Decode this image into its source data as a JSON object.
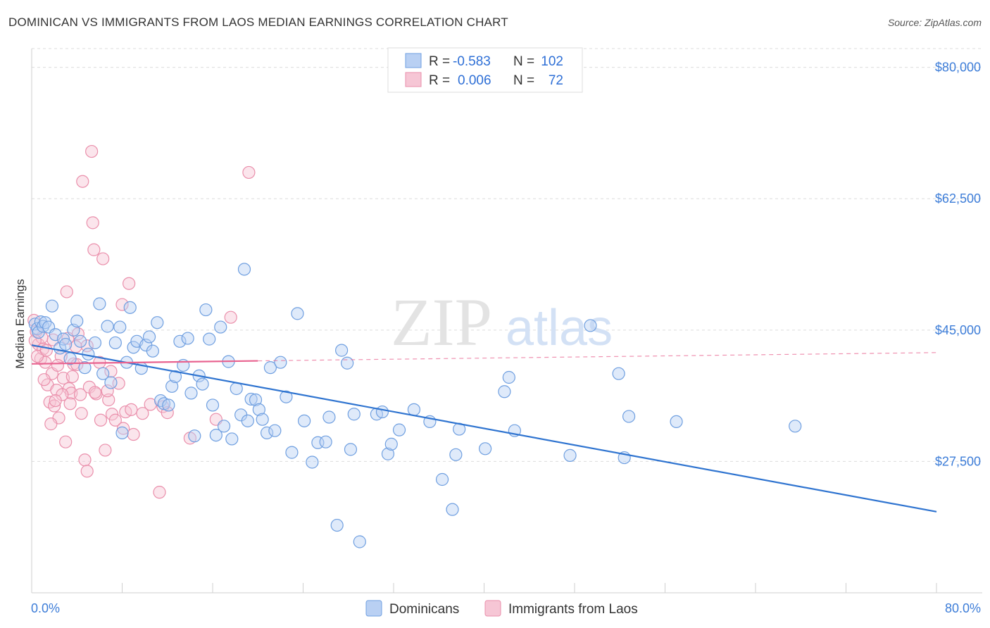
{
  "title": "DOMINICAN VS IMMIGRANTS FROM LAOS MEDIAN EARNINGS CORRELATION CHART",
  "source": "Source: ZipAtlas.com",
  "watermark": {
    "zip": "ZIP",
    "atlas": "atlas"
  },
  "colors": {
    "blue": "#6f9fe0",
    "blue_fill": "#b9d0f3",
    "blue_line": "#2f74d0",
    "pink": "#ea8fab",
    "pink_fill": "#f6c6d5",
    "pink_line": "#e8628f",
    "grid": "#dcdcdc",
    "tick_text": "#3d7dd8"
  },
  "legend": {
    "rows": [
      {
        "r_label": "R = ",
        "r_value": "-0.583",
        "n_label": "N = ",
        "n_value": "102"
      },
      {
        "r_label": "R = ",
        "r_value": "0.006",
        "n_label": "N = ",
        "n_value": "72"
      }
    ]
  },
  "bottom_legend": [
    "Dominicans",
    "Immigrants from Laos"
  ],
  "chart_data": {
    "type": "scatter",
    "title": "DOMINICAN VS IMMIGRANTS FROM LAOS MEDIAN EARNINGS CORRELATION CHART",
    "xlabel": "",
    "ylabel": "Median Earnings",
    "xlim": [
      0,
      80
    ],
    "ylim": [
      10000,
      82500
    ],
    "x_tick_labels": [
      "0.0%",
      "80.0%"
    ],
    "y_ticks": [
      27500,
      45000,
      62500,
      80000
    ],
    "y_tick_labels": [
      "$27,500",
      "$45,000",
      "$62,500",
      "$80,000"
    ],
    "grid": true,
    "legend_placement": "top-center",
    "series": [
      {
        "name": "Dominicans",
        "points": [
          [
            0.3,
            45800
          ],
          [
            0.5,
            45200
          ],
          [
            0.6,
            44700
          ],
          [
            0.8,
            46100
          ],
          [
            1.0,
            45500
          ],
          [
            1.2,
            46000
          ],
          [
            1.5,
            45400
          ],
          [
            1.8,
            48200
          ],
          [
            2.1,
            44400
          ],
          [
            2.5,
            42600
          ],
          [
            2.8,
            43800
          ],
          [
            3.0,
            43100
          ],
          [
            3.4,
            41200
          ],
          [
            3.7,
            45000
          ],
          [
            4.0,
            46200
          ],
          [
            4.3,
            43500
          ],
          [
            4.7,
            40000
          ],
          [
            5.0,
            41800
          ],
          [
            5.6,
            43300
          ],
          [
            6.0,
            48500
          ],
          [
            6.3,
            39200
          ],
          [
            6.7,
            45500
          ],
          [
            7.0,
            38000
          ],
          [
            7.4,
            43300
          ],
          [
            7.8,
            45400
          ],
          [
            8.0,
            31300
          ],
          [
            8.4,
            40700
          ],
          [
            8.7,
            48000
          ],
          [
            9.0,
            42700
          ],
          [
            9.3,
            43500
          ],
          [
            9.7,
            39900
          ],
          [
            10.1,
            43000
          ],
          [
            10.4,
            44100
          ],
          [
            10.7,
            42200
          ],
          [
            11.1,
            46000
          ],
          [
            11.4,
            35600
          ],
          [
            11.7,
            35200
          ],
          [
            12.1,
            35000
          ],
          [
            12.4,
            37500
          ],
          [
            12.7,
            38800
          ],
          [
            13.1,
            43500
          ],
          [
            13.4,
            40300
          ],
          [
            13.8,
            43900
          ],
          [
            14.1,
            36600
          ],
          [
            14.4,
            30900
          ],
          [
            14.8,
            38900
          ],
          [
            15.1,
            37800
          ],
          [
            15.4,
            47700
          ],
          [
            15.7,
            43800
          ],
          [
            16.0,
            35000
          ],
          [
            16.3,
            31000
          ],
          [
            16.7,
            45400
          ],
          [
            17.0,
            32200
          ],
          [
            17.4,
            40800
          ],
          [
            17.7,
            30500
          ],
          [
            18.1,
            37200
          ],
          [
            18.5,
            33700
          ],
          [
            18.8,
            53100
          ],
          [
            19.1,
            32900
          ],
          [
            19.4,
            35800
          ],
          [
            19.8,
            35700
          ],
          [
            20.1,
            34400
          ],
          [
            20.4,
            33100
          ],
          [
            20.8,
            31300
          ],
          [
            21.1,
            40000
          ],
          [
            21.5,
            31600
          ],
          [
            22.0,
            40700
          ],
          [
            22.5,
            36100
          ],
          [
            23.0,
            28700
          ],
          [
            23.5,
            47200
          ],
          [
            24.1,
            32900
          ],
          [
            24.8,
            27400
          ],
          [
            25.3,
            30000
          ],
          [
            26.0,
            30100
          ],
          [
            26.3,
            33400
          ],
          [
            27.0,
            19000
          ],
          [
            27.4,
            42300
          ],
          [
            27.9,
            40600
          ],
          [
            28.2,
            29100
          ],
          [
            28.5,
            33800
          ],
          [
            29.0,
            16800
          ],
          [
            30.5,
            33800
          ],
          [
            31.0,
            34100
          ],
          [
            31.5,
            28500
          ],
          [
            31.8,
            29800
          ],
          [
            32.5,
            31700
          ],
          [
            33.8,
            34400
          ],
          [
            35.2,
            32800
          ],
          [
            36.3,
            25100
          ],
          [
            37.2,
            21100
          ],
          [
            37.5,
            28400
          ],
          [
            37.8,
            31800
          ],
          [
            40.1,
            29200
          ],
          [
            41.8,
            36800
          ],
          [
            42.2,
            38700
          ],
          [
            42.7,
            31600
          ],
          [
            47.6,
            28300
          ],
          [
            49.4,
            45600
          ],
          [
            51.9,
            39200
          ],
          [
            52.4,
            28000
          ],
          [
            52.8,
            33500
          ],
          [
            57.0,
            32800
          ],
          [
            67.5,
            32200
          ]
        ],
        "trend": {
          "x0": 0,
          "y0": 43000,
          "x1": 80,
          "y1": 20800
        }
      },
      {
        "name": "Immigrants from Laos",
        "points": [
          [
            0.2,
            46300
          ],
          [
            0.4,
            44800
          ],
          [
            0.6,
            43100
          ],
          [
            0.8,
            41200
          ],
          [
            1.0,
            42500
          ],
          [
            1.2,
            40700
          ],
          [
            1.4,
            37700
          ],
          [
            1.6,
            35400
          ],
          [
            1.8,
            39200
          ],
          [
            2.0,
            34900
          ],
          [
            2.2,
            37000
          ],
          [
            2.4,
            33300
          ],
          [
            2.6,
            41500
          ],
          [
            2.8,
            38600
          ],
          [
            3.0,
            30100
          ],
          [
            3.1,
            50100
          ],
          [
            3.3,
            37200
          ],
          [
            3.5,
            36600
          ],
          [
            3.7,
            40500
          ],
          [
            3.9,
            42800
          ],
          [
            4.1,
            44500
          ],
          [
            4.3,
            36400
          ],
          [
            4.5,
            64800
          ],
          [
            4.7,
            27700
          ],
          [
            4.9,
            26200
          ],
          [
            5.1,
            37400
          ],
          [
            5.3,
            68800
          ],
          [
            5.4,
            59300
          ],
          [
            5.5,
            55700
          ],
          [
            5.7,
            36500
          ],
          [
            6.0,
            40700
          ],
          [
            6.3,
            54500
          ],
          [
            6.5,
            29000
          ],
          [
            6.8,
            35700
          ],
          [
            7.1,
            33800
          ],
          [
            7.4,
            33000
          ],
          [
            7.7,
            37900
          ],
          [
            8.0,
            48400
          ],
          [
            8.3,
            34100
          ],
          [
            8.6,
            51200
          ],
          [
            8.8,
            34400
          ],
          [
            9.0,
            31100
          ],
          [
            11.3,
            23400
          ],
          [
            11.6,
            34800
          ],
          [
            14.0,
            30600
          ],
          [
            16.3,
            33100
          ],
          [
            17.6,
            46700
          ],
          [
            19.2,
            66000
          ],
          [
            1.1,
            38400
          ],
          [
            1.9,
            43700
          ],
          [
            2.3,
            40300
          ],
          [
            0.9,
            44000
          ],
          [
            3.6,
            38800
          ],
          [
            4.9,
            42900
          ],
          [
            0.5,
            41500
          ],
          [
            1.3,
            42300
          ],
          [
            2.7,
            36400
          ],
          [
            3.2,
            43900
          ],
          [
            6.1,
            33000
          ],
          [
            7.0,
            39500
          ],
          [
            9.8,
            33900
          ],
          [
            10.5,
            35100
          ],
          [
            4.0,
            40400
          ],
          [
            2.1,
            35600
          ],
          [
            5.6,
            36700
          ],
          [
            1.7,
            32500
          ],
          [
            3.4,
            35200
          ],
          [
            8.1,
            31900
          ],
          [
            0.3,
            43600
          ],
          [
            6.7,
            36900
          ],
          [
            12.0,
            34000
          ],
          [
            4.4,
            33900
          ]
        ],
        "trend": {
          "x0": 0,
          "y0": 40500,
          "x1": 20,
          "y1": 40900
        },
        "trend_extension": {
          "x0": 20,
          "y0": 40900,
          "x1": 80,
          "y1": 42000
        }
      }
    ]
  }
}
